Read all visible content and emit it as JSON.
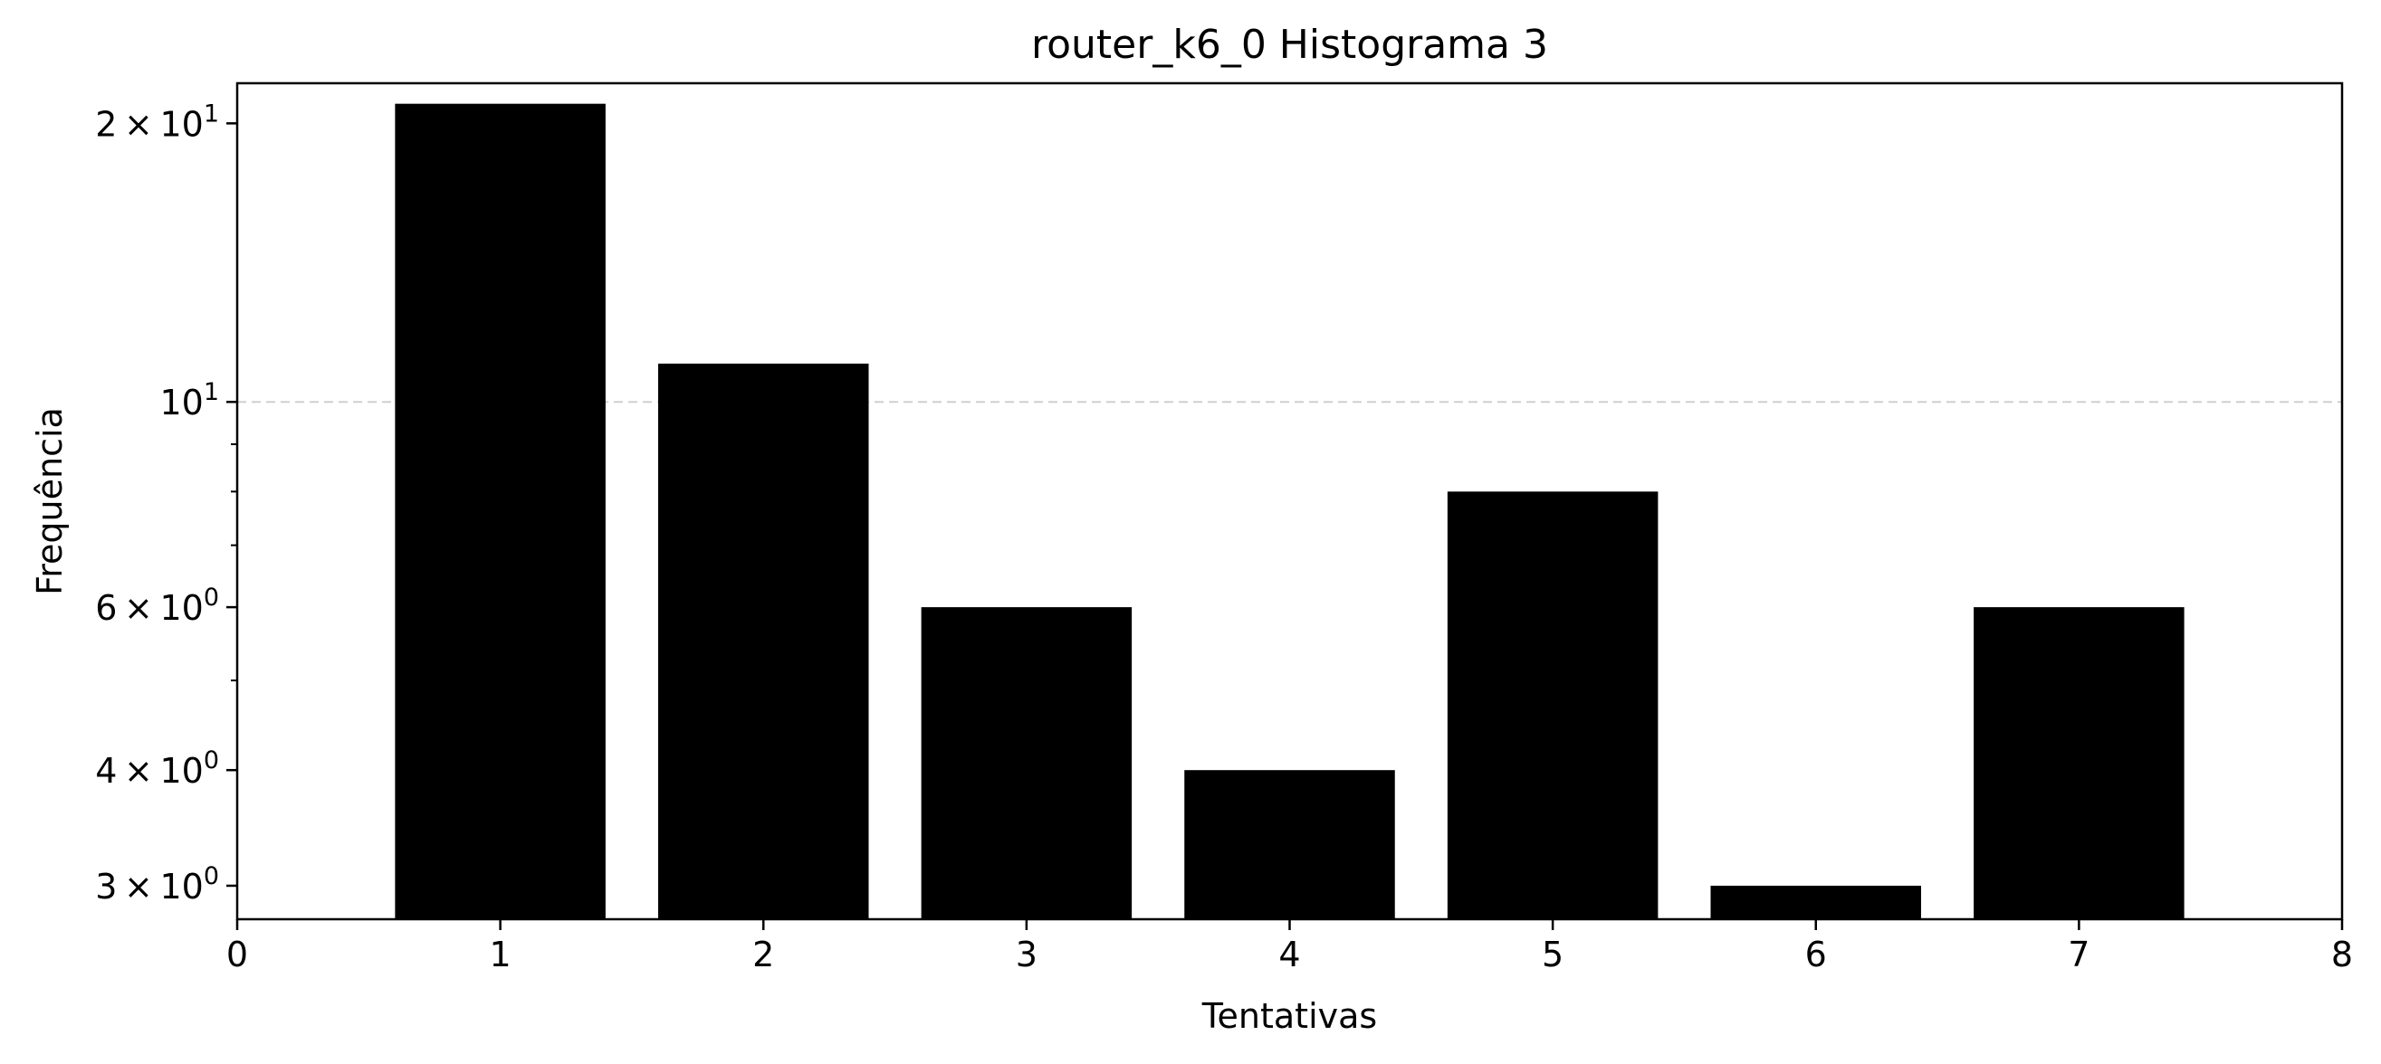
{
  "chart_data": {
    "type": "bar",
    "title": "router_k6_0 Histograma 3",
    "xlabel": "Tentativas",
    "ylabel": "Frequência",
    "y_scale": "log",
    "xlim": [
      0,
      8
    ],
    "ylim": [
      2.76,
      22.1
    ],
    "grid": "y major, dashed",
    "x": [
      1,
      2,
      3,
      4,
      5,
      6,
      7
    ],
    "values": [
      21,
      11,
      6,
      4,
      8,
      3,
      6
    ],
    "bar_width": 0.8,
    "bar_color": "#000000",
    "x_ticks": [
      0,
      1,
      2,
      3,
      4,
      5,
      6,
      7,
      8
    ],
    "x_tick_labels": [
      "0",
      "1",
      "2",
      "3",
      "4",
      "5",
      "6",
      "7",
      "8"
    ],
    "y_major_ticks": [
      {
        "value": 20,
        "mantissa": "2",
        "exponent": "1"
      },
      {
        "value": 10,
        "mantissa": "",
        "exponent": "1"
      },
      {
        "value": 6,
        "mantissa": "6",
        "exponent": "0"
      },
      {
        "value": 4,
        "mantissa": "4",
        "exponent": "0"
      },
      {
        "value": 3,
        "mantissa": "3",
        "exponent": "0"
      }
    ],
    "y_minor_ticks": [
      5,
      7,
      8,
      9
    ]
  }
}
